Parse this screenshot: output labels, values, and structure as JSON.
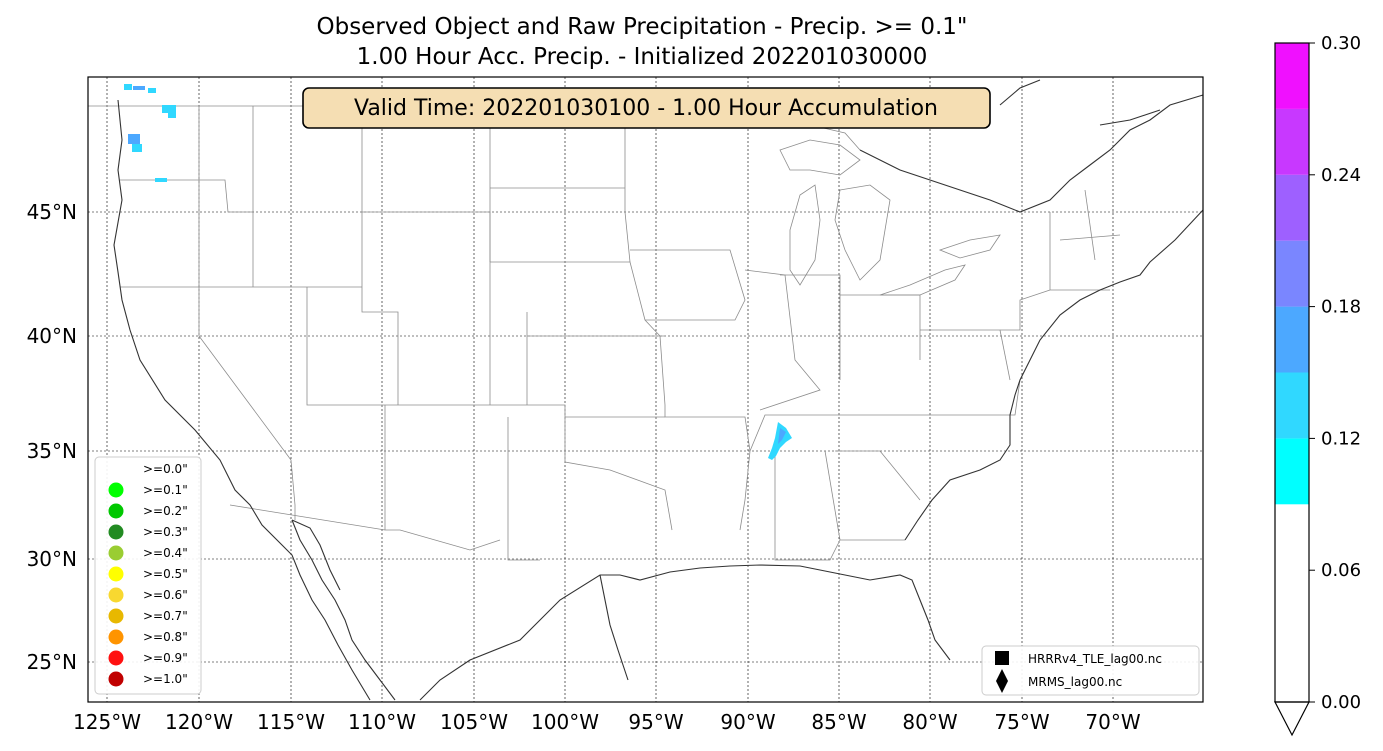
{
  "title": {
    "line1": "Observed Object and Raw Precipitation - Precip. >= 0.1\"",
    "line2": "1.00 Hour Acc. Precip. - Initialized 202201030000"
  },
  "valid_time_label": "Valid Time: 202201030100 - 1.00 Hour Accumulation",
  "map": {
    "lon_ticks": [
      "125°W",
      "120°W",
      "115°W",
      "110°W",
      "105°W",
      "100°W",
      "95°W",
      "90°W",
      "85°W",
      "80°W",
      "75°W",
      "70°W"
    ],
    "lat_ticks": [
      "45°N",
      "40°N",
      "35°N",
      "30°N",
      "25°N"
    ]
  },
  "threshold_legend": [
    {
      "label": ">=0.0\"",
      "color": "#ffffff"
    },
    {
      "label": ">=0.1\"",
      "color": "#00ff00"
    },
    {
      "label": ">=0.2\"",
      "color": "#00c800"
    },
    {
      "label": ">=0.3\"",
      "color": "#228b22"
    },
    {
      "label": ">=0.4\"",
      "color": "#9acd32"
    },
    {
      "label": ">=0.5\"",
      "color": "#ffff00"
    },
    {
      "label": ">=0.6\"",
      "color": "#f8d830"
    },
    {
      "label": ">=0.7\"",
      "color": "#e8b800"
    },
    {
      "label": ">=0.8\"",
      "color": "#ff9400"
    },
    {
      "label": ">=0.9\"",
      "color": "#ff1010"
    },
    {
      "label": ">=1.0\"",
      "color": "#c00000"
    }
  ],
  "source_legend": [
    {
      "label": "HRRRv4_TLE_lag00.nc",
      "marker": "square-icon"
    },
    {
      "label": "MRMS_lag00.nc",
      "marker": "diamond-icon"
    }
  ],
  "colorbar": {
    "ticks": [
      "0.30",
      "0.24",
      "0.18",
      "0.12",
      "0.06",
      "0.00"
    ],
    "bands": [
      {
        "from": 0.0,
        "to": 0.09,
        "color": "#ffffff"
      },
      {
        "from": 0.09,
        "to": 0.12,
        "color": "#00ffff"
      },
      {
        "from": 0.12,
        "to": 0.15,
        "color": "#30d8ff"
      },
      {
        "from": 0.15,
        "to": 0.18,
        "color": "#4ca8ff"
      },
      {
        "from": 0.18,
        "to": 0.21,
        "color": "#7a86ff"
      },
      {
        "from": 0.21,
        "to": 0.24,
        "color": "#9e60ff"
      },
      {
        "from": 0.24,
        "to": 0.27,
        "color": "#c838ff"
      },
      {
        "from": 0.27,
        "to": 0.3,
        "color": "#f010ff"
      }
    ]
  },
  "colors": {
    "valid_box_fill": "#f5deb3",
    "precip_light": "#30d8ff",
    "precip_mid": "#4ca8ff"
  }
}
